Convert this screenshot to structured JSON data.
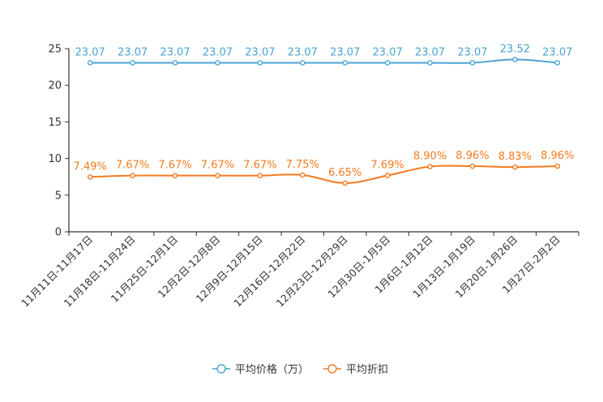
{
  "chart_data": {
    "type": "line",
    "categories": [
      "11月11日-11月17日",
      "11月18日-11月24日",
      "11月25日-12月1日",
      "12月2日-12月8日",
      "12月9日-12月15日",
      "12月16日-12月22日",
      "12月23日-12月29日",
      "12月30日-1月5日",
      "1月6日-1月12日",
      "1月13日-1月19日",
      "1月20日-1月26日",
      "1月27日-2月2日"
    ],
    "series": [
      {
        "name": "平均价格（万）",
        "color": "#4aa3d4",
        "values": [
          23.07,
          23.07,
          23.07,
          23.07,
          23.07,
          23.07,
          23.07,
          23.07,
          23.07,
          23.07,
          23.52,
          23.07
        ],
        "labels": [
          "23.07",
          "23.07",
          "23.07",
          "23.07",
          "23.07",
          "23.07",
          "23.07",
          "23.07",
          "23.07",
          "23.07",
          "23.52",
          "23.07"
        ]
      },
      {
        "name": "平均折扣",
        "color": "#f47b20",
        "values": [
          7.49,
          7.67,
          7.67,
          7.67,
          7.67,
          7.75,
          6.65,
          7.69,
          8.9,
          8.96,
          8.83,
          8.96
        ],
        "labels": [
          "7.49%",
          "7.67%",
          "7.67%",
          "7.67%",
          "7.67%",
          "7.75%",
          "6.65%",
          "7.69%",
          "8.90%",
          "8.96%",
          "8.83%",
          "8.96%"
        ]
      }
    ],
    "ylim": [
      0,
      25
    ],
    "yticks": [
      "0",
      "5",
      "10",
      "15",
      "20",
      "25"
    ],
    "title": "",
    "xlabel": "",
    "ylabel": "",
    "grid": false,
    "legend_position": "bottom-center"
  }
}
